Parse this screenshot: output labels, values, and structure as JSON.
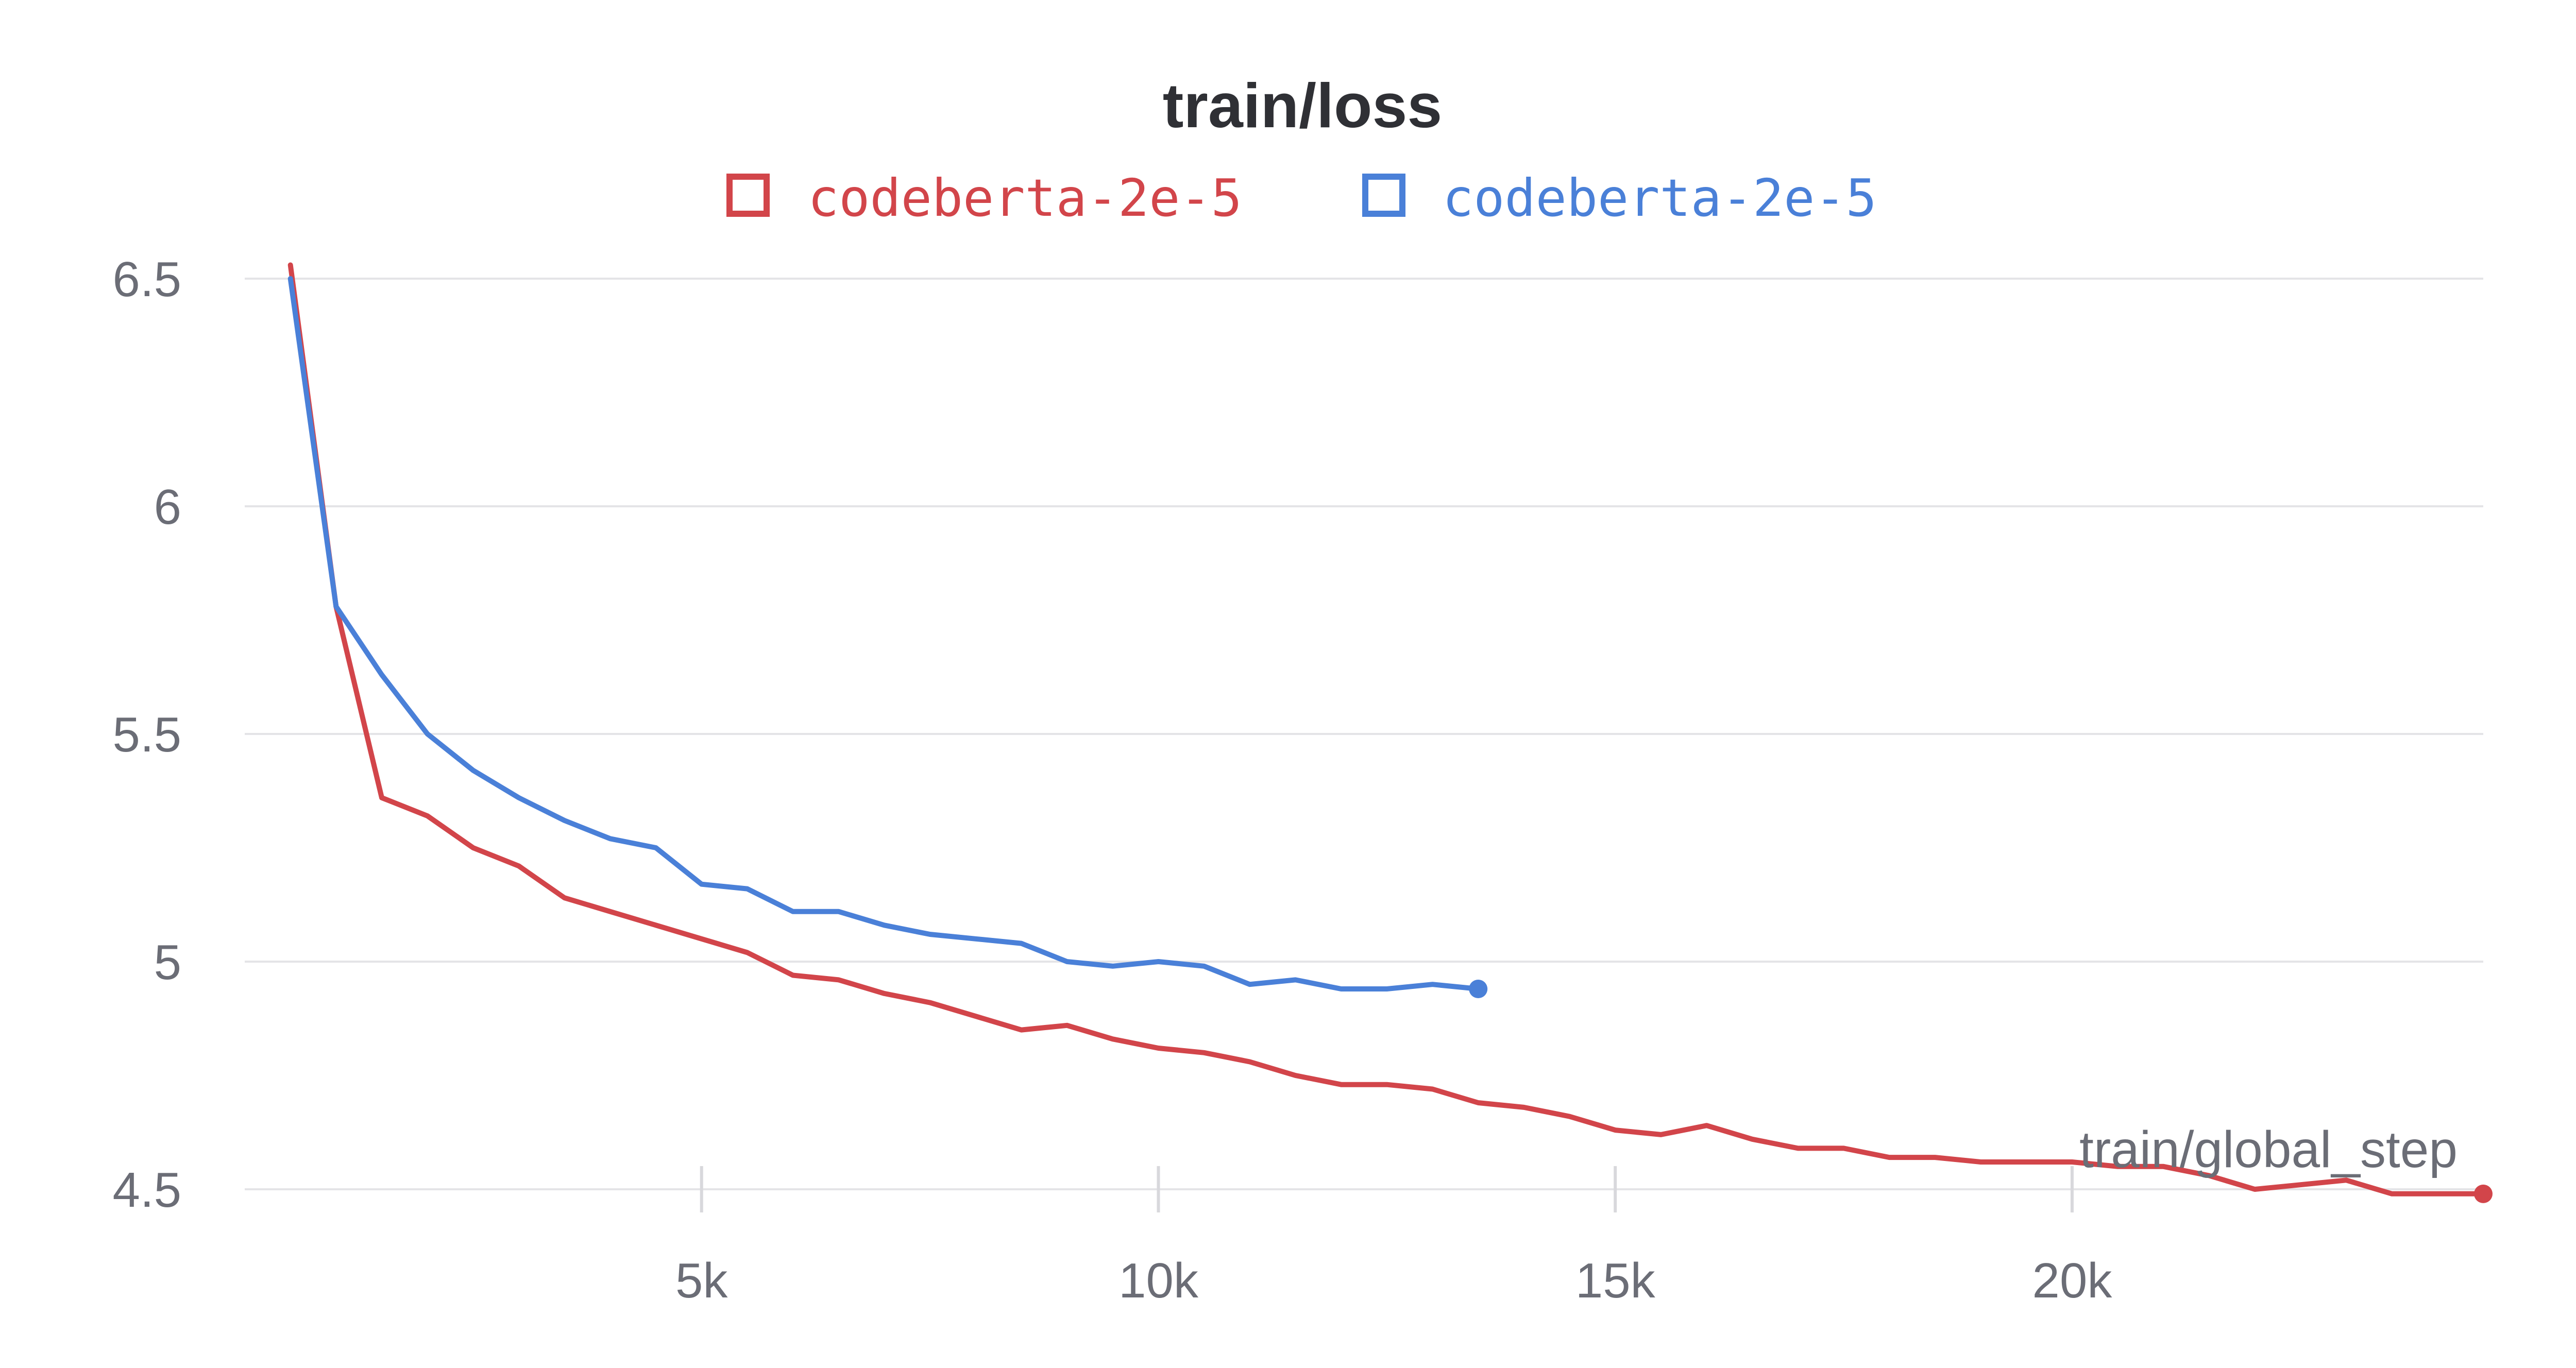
{
  "chart_data": {
    "type": "line",
    "title": "train/loss",
    "xlabel": "train/global_step",
    "ylabel": "",
    "xlim": [
      0,
      24500
    ],
    "ylim": [
      4.5,
      6.5
    ],
    "x_ticks": [
      5000,
      10000,
      15000,
      20000
    ],
    "x_tick_labels": [
      "5k",
      "10k",
      "15k",
      "20k"
    ],
    "y_ticks": [
      4.5,
      5,
      5.5,
      6,
      6.5
    ],
    "y_tick_labels": [
      "4.5",
      "5",
      "5.5",
      "6",
      "6.5"
    ],
    "grid": true,
    "legend_position": "top-center",
    "series": [
      {
        "name": "codeberta-2e-5",
        "color": "#d2454a",
        "x": [
          500,
          1000,
          1500,
          2000,
          2500,
          3000,
          3500,
          4000,
          4500,
          5000,
          5500,
          6000,
          6500,
          7000,
          7500,
          8000,
          8500,
          9000,
          9500,
          10000,
          10500,
          11000,
          11500,
          12000,
          12500,
          13000,
          13500,
          14000,
          14500,
          15000,
          15500,
          16000,
          16500,
          17000,
          17500,
          18000,
          18500,
          19000,
          19500,
          20000,
          20500,
          21000,
          21500,
          22000,
          22500,
          23000,
          23500,
          24000,
          24500
        ],
        "y": [
          6.53,
          5.78,
          5.36,
          5.32,
          5.25,
          5.21,
          5.14,
          5.11,
          5.08,
          5.05,
          5.02,
          4.97,
          4.96,
          4.93,
          4.91,
          4.88,
          4.85,
          4.86,
          4.83,
          4.81,
          4.8,
          4.78,
          4.75,
          4.73,
          4.73,
          4.72,
          4.69,
          4.68,
          4.66,
          4.63,
          4.62,
          4.64,
          4.61,
          4.59,
          4.59,
          4.57,
          4.57,
          4.56,
          4.56,
          4.56,
          4.55,
          4.55,
          4.53,
          4.5,
          4.51,
          4.52,
          4.49,
          4.49,
          4.49
        ]
      },
      {
        "name": "codeberta-2e-5",
        "color": "#4a80d8",
        "x": [
          500,
          1000,
          1500,
          2000,
          2500,
          3000,
          3500,
          4000,
          4500,
          5000,
          5500,
          6000,
          6500,
          7000,
          7500,
          8000,
          8500,
          9000,
          9500,
          10000,
          10500,
          11000,
          11500,
          12000,
          12500,
          13000,
          13500
        ],
        "y": [
          6.5,
          5.78,
          5.63,
          5.5,
          5.42,
          5.36,
          5.31,
          5.27,
          5.25,
          5.17,
          5.16,
          5.11,
          5.11,
          5.08,
          5.06,
          5.05,
          5.04,
          5.0,
          4.99,
          5.0,
          4.99,
          4.95,
          4.96,
          4.94,
          4.94,
          4.95,
          4.94
        ]
      }
    ]
  }
}
